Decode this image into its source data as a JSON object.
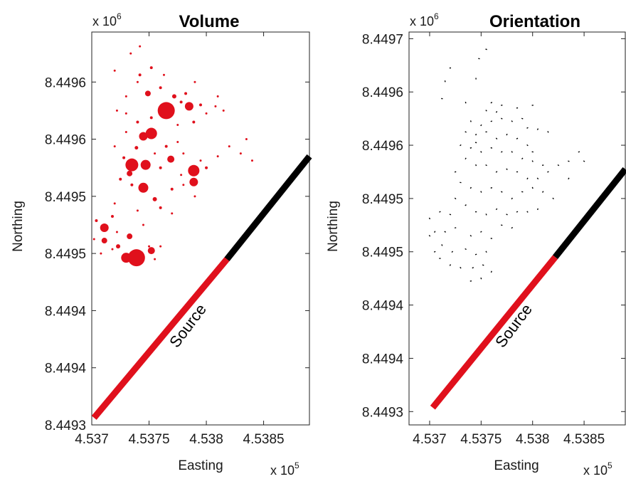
{
  "chart_data": [
    {
      "type": "scatter",
      "title": "Volume",
      "xlabel": "Easting",
      "ylabel": "Northing",
      "x_multiplier": "x 10",
      "x_multiplier_exp": "5",
      "y_multiplier": "x 10",
      "y_multiplier_exp": "6",
      "x_ticks": [
        "4.537",
        "4.5375",
        "4.538",
        "4.5385"
      ],
      "x_tick_values": [
        4.537,
        4.5375,
        4.538,
        4.5385
      ],
      "y_ticks": [
        "8.4496",
        "8.4496",
        "8.4495",
        "8.4495",
        "8.4494",
        "8.4494",
        "8.4493"
      ],
      "y_tick_values": [
        8.44962,
        8.44958,
        8.44954,
        8.4495,
        8.44946,
        8.44942,
        8.44938
      ],
      "xlim": [
        4.537,
        4.5389
      ],
      "ylim": [
        8.44938,
        8.449655
      ],
      "grid": false,
      "source_label": "Source",
      "source_line": {
        "red": {
          "from": [
            4.53702,
            8.449385
          ],
          "to": [
            4.53818,
            8.449496
          ],
          "color": "#e0101c"
        },
        "black": {
          "from": [
            4.53818,
            8.449496
          ],
          "to": [
            4.5389,
            8.449568
          ],
          "color": "#000000"
        }
      },
      "marker_color": "#e0101c",
      "points": [
        [
          4.53765,
          8.4496,
          12
        ],
        [
          4.53785,
          8.449603,
          6
        ],
        [
          4.53752,
          8.449584,
          8
        ],
        [
          4.53745,
          8.449582,
          6
        ],
        [
          4.53735,
          8.449562,
          9
        ],
        [
          4.53747,
          8.449562,
          7
        ],
        [
          4.53733,
          8.449556,
          4
        ],
        [
          4.53769,
          8.449566,
          5
        ],
        [
          4.53789,
          8.449558,
          8
        ],
        [
          4.53789,
          8.44955,
          6
        ],
        [
          4.53745,
          8.449546,
          7
        ],
        [
          4.53755,
          8.449538,
          3
        ],
        [
          4.53711,
          8.449518,
          6
        ],
        [
          4.53711,
          8.449509,
          4
        ],
        [
          4.53733,
          8.449512,
          4
        ],
        [
          4.53739,
          8.449497,
          12
        ],
        [
          4.5373,
          8.449497,
          7
        ],
        [
          4.53752,
          8.449502,
          5
        ],
        [
          4.53723,
          8.449505,
          3
        ],
        [
          4.53704,
          8.449523,
          2
        ],
        [
          4.53749,
          8.449612,
          4
        ],
        [
          4.53772,
          8.44961,
          3
        ],
        [
          4.53778,
          8.449606,
          2
        ],
        [
          4.5376,
          8.449616,
          2
        ],
        [
          4.53752,
          8.44963,
          2
        ],
        [
          4.53742,
          8.449625,
          2
        ],
        [
          4.53782,
          8.449612,
          2
        ],
        [
          4.53795,
          8.449604,
          2
        ],
        [
          4.538,
          8.449598,
          1.5
        ],
        [
          4.53808,
          8.449603,
          1.5
        ],
        [
          4.53815,
          8.4496,
          1.5
        ],
        [
          4.53789,
          8.449592,
          2
        ],
        [
          4.53775,
          8.44959,
          1.5
        ],
        [
          4.53752,
          8.449595,
          2
        ],
        [
          4.5374,
          8.449592,
          2
        ],
        [
          4.5373,
          8.449598,
          1.5
        ],
        [
          4.53722,
          8.4496,
          1.5
        ],
        [
          4.5373,
          8.44961,
          1.5
        ],
        [
          4.5379,
          8.44962,
          1.5
        ],
        [
          4.5381,
          8.44961,
          1.5
        ],
        [
          4.53765,
          8.449575,
          2
        ],
        [
          4.53775,
          8.449578,
          1.5
        ],
        [
          4.5378,
          8.44957,
          1.5
        ],
        [
          4.53755,
          8.44957,
          1.5
        ],
        [
          4.53739,
          8.449574,
          2.5
        ],
        [
          4.53728,
          8.449567,
          2
        ],
        [
          4.5376,
          8.44956,
          2
        ],
        [
          4.53778,
          8.449555,
          1.5
        ],
        [
          4.538,
          8.44956,
          2
        ],
        [
          4.5381,
          8.449568,
          1.5
        ],
        [
          4.5382,
          8.449575,
          1.5
        ],
        [
          4.5383,
          8.44957,
          1.5
        ],
        [
          4.5384,
          8.449565,
          1.5
        ],
        [
          4.53835,
          8.44958,
          1.5
        ],
        [
          4.53725,
          8.449552,
          2
        ],
        [
          4.53735,
          8.449548,
          2
        ],
        [
          4.5377,
          8.449545,
          2
        ],
        [
          4.5378,
          8.449548,
          1.5
        ],
        [
          4.5376,
          8.449532,
          2
        ],
        [
          4.5377,
          8.449528,
          1.5
        ],
        [
          4.5374,
          8.44953,
          1.5
        ],
        [
          4.5372,
          8.449535,
          1.5
        ],
        [
          4.53718,
          8.449526,
          2
        ],
        [
          4.53722,
          8.449515,
          1.5
        ],
        [
          4.53745,
          8.44952,
          1.5
        ],
        [
          4.5375,
          8.449505,
          1.5
        ],
        [
          4.53718,
          8.449503,
          1.5
        ],
        [
          4.53708,
          8.4495,
          1.5
        ],
        [
          4.53702,
          8.44951,
          1.5
        ],
        [
          4.5374,
          8.4495,
          2
        ],
        [
          4.53755,
          8.449496,
          1.5
        ],
        [
          4.5376,
          8.449505,
          1.5
        ],
        [
          4.53742,
          8.449645,
          1.5
        ],
        [
          4.53734,
          8.44964,
          1.5
        ],
        [
          4.5372,
          8.449628,
          1.5
        ],
        [
          4.5374,
          8.44962,
          1.5
        ],
        [
          4.53763,
          8.449625,
          1.5
        ],
        [
          4.5373,
          8.449585,
          1.5
        ],
        [
          4.5372,
          8.449575,
          1.5
        ],
        [
          4.5379,
          8.44954,
          1.5
        ],
        [
          4.53795,
          8.449565,
          1.5
        ]
      ]
    },
    {
      "type": "scatter",
      "title": "Orientation",
      "xlabel": "Easting",
      "ylabel": "Northing",
      "x_multiplier": "x 10",
      "x_multiplier_exp": "5",
      "y_multiplier": "x 10",
      "y_multiplier_exp": "6",
      "x_ticks": [
        "4.537",
        "4.5375",
        "4.538",
        "4.5385"
      ],
      "x_tick_values": [
        4.537,
        4.5375,
        4.538,
        4.5385
      ],
      "y_ticks": [
        "8.4497",
        "8.4496",
        "8.4496",
        "8.4495",
        "8.4495",
        "8.4494",
        "8.4494",
        "8.4493"
      ],
      "y_tick_values": [
        8.44966,
        8.44962,
        8.44958,
        8.44954,
        8.4495,
        8.44946,
        8.44942,
        8.44938
      ],
      "xlim": [
        4.5368,
        4.5389
      ],
      "ylim": [
        8.44937,
        8.449665
      ],
      "grid": false,
      "source_label": "Source",
      "source_line": {
        "red": {
          "from": [
            4.53703,
            8.449383
          ],
          "to": [
            4.53822,
            8.449496
          ],
          "color": "#e0101c"
        },
        "black": {
          "from": [
            4.53822,
            8.449496
          ],
          "to": [
            4.5389,
            8.449562
          ],
          "color": "#000000"
        }
      },
      "marker_color": "#000000",
      "segment_length": 9.5e-06,
      "segments": [
        [
          4.53755,
          8.449652,
          70
        ],
        [
          4.53748,
          8.449645,
          80
        ],
        [
          4.5372,
          8.449638,
          95
        ],
        [
          4.53715,
          8.449628,
          10
        ],
        [
          4.53745,
          8.44963,
          5
        ],
        [
          4.53712,
          8.449615,
          85
        ],
        [
          4.53735,
          8.449612,
          15
        ],
        [
          4.5376,
          8.449612,
          120
        ],
        [
          4.53755,
          8.449606,
          40
        ],
        [
          4.53765,
          8.449605,
          150
        ],
        [
          4.5377,
          8.44961,
          100
        ],
        [
          4.53785,
          8.449608,
          95
        ],
        [
          4.5379,
          8.4496,
          70
        ],
        [
          4.5378,
          8.449598,
          40
        ],
        [
          4.53795,
          8.449593,
          120
        ],
        [
          4.53805,
          8.449592,
          150
        ],
        [
          4.53815,
          8.44959,
          30
        ],
        [
          4.5377,
          8.4496,
          60
        ],
        [
          4.5376,
          8.449598,
          110
        ],
        [
          4.5375,
          8.449595,
          140
        ],
        [
          4.5374,
          8.449598,
          20
        ],
        [
          4.53735,
          8.44959,
          60
        ],
        [
          4.53745,
          8.449588,
          160
        ],
        [
          4.53755,
          8.44959,
          90
        ],
        [
          4.53765,
          8.449585,
          45
        ],
        [
          4.53775,
          8.449588,
          150
        ],
        [
          4.53785,
          8.449585,
          120
        ],
        [
          4.53795,
          8.44958,
          50
        ],
        [
          4.538,
          8.449575,
          80
        ],
        [
          4.5379,
          8.44957,
          140
        ],
        [
          4.5378,
          8.449575,
          30
        ],
        [
          4.5377,
          8.449575,
          120
        ],
        [
          4.5376,
          8.449578,
          70
        ],
        [
          4.5375,
          8.449575,
          40
        ],
        [
          4.5374,
          8.449578,
          110
        ],
        [
          4.53735,
          8.44957,
          150
        ],
        [
          4.53745,
          8.449565,
          20
        ],
        [
          4.53755,
          8.449565,
          60
        ],
        [
          4.53765,
          8.44956,
          130
        ],
        [
          4.53775,
          8.449562,
          45
        ],
        [
          4.53785,
          8.44956,
          90
        ],
        [
          4.53795,
          8.449555,
          150
        ],
        [
          4.53805,
          8.449555,
          40
        ],
        [
          4.53815,
          8.44956,
          120
        ],
        [
          4.53825,
          8.449565,
          60
        ],
        [
          4.53835,
          8.449568,
          70
        ],
        [
          4.53845,
          8.449575,
          110
        ],
        [
          4.5379,
          8.449545,
          80
        ],
        [
          4.538,
          8.449548,
          20
        ],
        [
          4.5381,
          8.449545,
          140
        ],
        [
          4.5382,
          8.44954,
          40
        ],
        [
          4.5378,
          8.44954,
          150
        ],
        [
          4.5377,
          8.449545,
          60
        ],
        [
          4.5376,
          8.449548,
          110
        ],
        [
          4.5375,
          8.449545,
          30
        ],
        [
          4.5374,
          8.449548,
          150
        ],
        [
          4.5373,
          8.449552,
          80
        ],
        [
          4.53725,
          8.44954,
          50
        ],
        [
          4.53735,
          8.449535,
          130
        ],
        [
          4.53745,
          8.44953,
          90
        ],
        [
          4.53755,
          8.449528,
          20
        ],
        [
          4.53765,
          8.449532,
          145
        ],
        [
          4.53775,
          8.449528,
          60
        ],
        [
          4.53785,
          8.44953,
          110
        ],
        [
          4.53795,
          8.44953,
          40
        ],
        [
          4.53805,
          8.449532,
          160
        ],
        [
          4.5372,
          8.449528,
          70
        ],
        [
          4.5371,
          8.44953,
          120
        ],
        [
          4.537,
          8.449525,
          30
        ],
        [
          4.53705,
          8.449515,
          150
        ],
        [
          4.53715,
          8.449515,
          60
        ],
        [
          4.53725,
          8.449518,
          100
        ],
        [
          4.5374,
          8.449512,
          45
        ],
        [
          4.5375,
          8.449515,
          130
        ],
        [
          4.5376,
          8.44951,
          80
        ],
        [
          4.53712,
          8.449505,
          20
        ],
        [
          4.53722,
          8.4495,
          140
        ],
        [
          4.53735,
          8.449502,
          60
        ],
        [
          4.53745,
          8.449498,
          110
        ],
        [
          4.53755,
          8.4495,
          30
        ],
        [
          4.5371,
          8.449495,
          90
        ],
        [
          4.5372,
          8.44949,
          150
        ],
        [
          4.5373,
          8.449488,
          40
        ],
        [
          4.53742,
          8.449488,
          120
        ],
        [
          4.53752,
          8.44949,
          70
        ],
        [
          4.5375,
          8.44948,
          20
        ],
        [
          4.5374,
          8.449478,
          100
        ],
        [
          4.5376,
          8.449485,
          160
        ],
        [
          4.537,
          8.449512,
          45
        ],
        [
          4.53705,
          8.4495,
          110
        ],
        [
          4.5377,
          8.44952,
          75
        ],
        [
          4.5378,
          8.449518,
          125
        ],
        [
          4.5381,
          8.449565,
          100
        ],
        [
          4.538,
          8.449568,
          30
        ],
        [
          4.5385,
          8.449568,
          60
        ],
        [
          4.53835,
          8.449555,
          150
        ],
        [
          4.53745,
          8.449582,
          75
        ],
        [
          4.5373,
          8.44958,
          130
        ],
        [
          4.53725,
          8.44956,
          100
        ],
        [
          4.538,
          8.44961,
          95
        ]
      ]
    }
  ]
}
